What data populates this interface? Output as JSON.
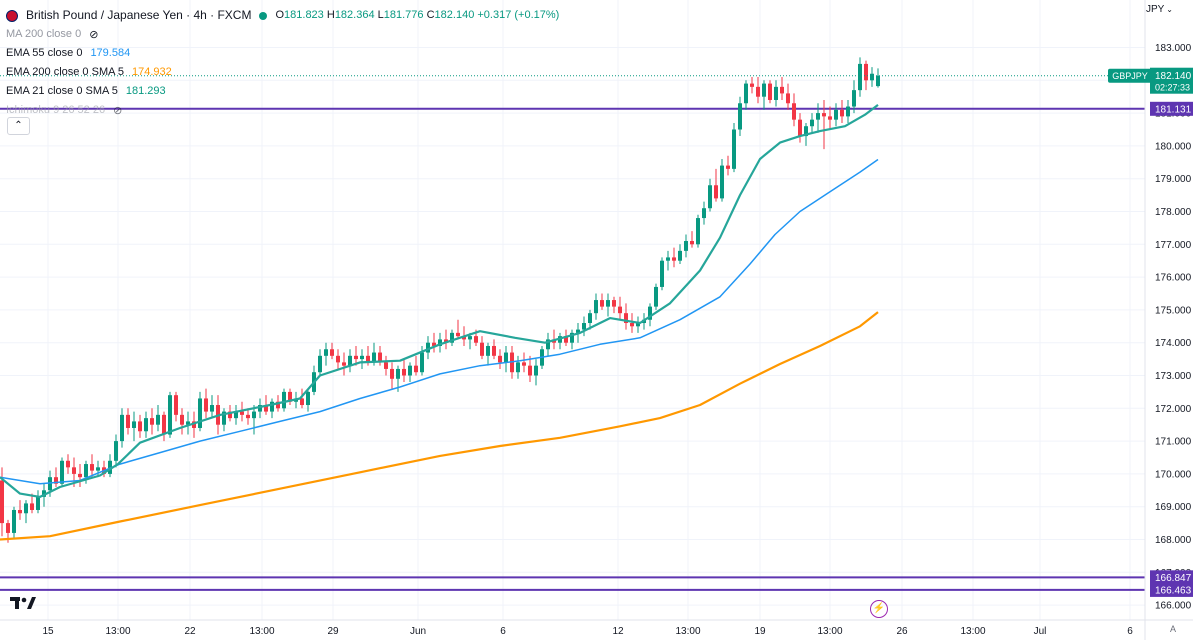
{
  "header": {
    "symbol_title": "British Pound / Japanese Yen · 4h · FXCM",
    "open_label": "O",
    "open": "181.823",
    "high_label": "H",
    "high": "182.364",
    "low_label": "L",
    "low": "181.776",
    "close_label": "C",
    "close": "182.140",
    "change": "+0.317 (+0.17%)"
  },
  "indicators": [
    {
      "name": "MA 200 close 0",
      "value": "",
      "color": "#9598a1"
    },
    {
      "name": "EMA 55 close 0",
      "value": "179.584",
      "color": "#2196f3"
    },
    {
      "name": "EMA 200 close 0 SMA 5",
      "value": "174.932",
      "color": "#ff9800"
    },
    {
      "name": "EMA 21 close 0 SMA 5",
      "value": "181.293",
      "color": "#26a69a"
    },
    {
      "name": "Ichimoku 9 26 52 26",
      "value": "",
      "color": "#9598a1"
    }
  ],
  "currency": "JPY",
  "colors": {
    "up": "#089981",
    "down": "#f23645",
    "ema21": "#26a69a",
    "ema55": "#2196f3",
    "ema200": "#ff9800",
    "hline": "#5e35b1",
    "price_tag": "#089981"
  },
  "chart_data": {
    "type": "candlestick",
    "title": "British Pound / Japanese Yen · 4h · FXCM",
    "xlabel": "",
    "ylabel": "",
    "ylim": [
      166.0,
      183.4
    ],
    "y_ticks": [
      "166.000",
      "167.000",
      "168.000",
      "169.000",
      "170.000",
      "171.000",
      "172.000",
      "173.000",
      "174.000",
      "175.000",
      "176.000",
      "177.000",
      "178.000",
      "179.000",
      "180.000",
      "181.000",
      "182.000",
      "183.000"
    ],
    "x_tick_labels": [
      "15",
      "13:00",
      "22",
      "13:00",
      "29",
      "Jun",
      "6",
      "12",
      "13:00",
      "19",
      "13:00",
      "26",
      "13:00",
      "Jul",
      "6"
    ],
    "last_price": "182.140",
    "countdown": "02:27:33",
    "symbol_tag": "GBPJPY",
    "horizontal_levels": [
      "181.131",
      "166.847",
      "166.463"
    ],
    "ema21": [
      [
        0,
        169.9
      ],
      [
        20,
        169.4
      ],
      [
        40,
        169.3
      ],
      [
        60,
        169.6
      ],
      [
        100,
        169.95
      ],
      [
        118,
        170.3
      ],
      [
        140,
        170.95
      ],
      [
        180,
        171.4
      ],
      [
        220,
        171.8
      ],
      [
        270,
        172.1
      ],
      [
        300,
        172.3
      ],
      [
        320,
        173.0
      ],
      [
        360,
        173.4
      ],
      [
        400,
        173.45
      ],
      [
        440,
        173.95
      ],
      [
        480,
        174.35
      ],
      [
        515,
        174.15
      ],
      [
        545,
        174.0
      ],
      [
        580,
        174.3
      ],
      [
        610,
        174.75
      ],
      [
        640,
        174.6
      ],
      [
        670,
        175.2
      ],
      [
        700,
        176.2
      ],
      [
        720,
        177.2
      ],
      [
        740,
        178.5
      ],
      [
        760,
        179.6
      ],
      [
        780,
        180.1
      ],
      [
        800,
        180.3
      ],
      [
        820,
        180.45
      ],
      [
        845,
        180.6
      ],
      [
        865,
        180.95
      ],
      [
        878,
        181.25
      ]
    ],
    "ema55": [
      [
        0,
        169.9
      ],
      [
        40,
        169.7
      ],
      [
        80,
        169.8
      ],
      [
        120,
        170.3
      ],
      [
        160,
        170.65
      ],
      [
        200,
        171.0
      ],
      [
        240,
        171.3
      ],
      [
        280,
        171.6
      ],
      [
        320,
        171.9
      ],
      [
        360,
        172.3
      ],
      [
        400,
        172.65
      ],
      [
        440,
        173.05
      ],
      [
        480,
        173.3
      ],
      [
        520,
        173.45
      ],
      [
        560,
        173.65
      ],
      [
        600,
        173.95
      ],
      [
        640,
        174.15
      ],
      [
        680,
        174.7
      ],
      [
        720,
        175.4
      ],
      [
        750,
        176.4
      ],
      [
        775,
        177.3
      ],
      [
        800,
        178.0
      ],
      [
        830,
        178.6
      ],
      [
        860,
        179.2
      ],
      [
        878,
        179.584
      ]
    ],
    "ema200": [
      [
        0,
        168.0
      ],
      [
        50,
        168.1
      ],
      [
        120,
        168.55
      ],
      [
        200,
        169.05
      ],
      [
        280,
        169.55
      ],
      [
        360,
        170.05
      ],
      [
        440,
        170.55
      ],
      [
        500,
        170.85
      ],
      [
        560,
        171.1
      ],
      [
        620,
        171.45
      ],
      [
        660,
        171.7
      ],
      [
        700,
        172.1
      ],
      [
        740,
        172.75
      ],
      [
        780,
        173.35
      ],
      [
        820,
        173.9
      ],
      [
        860,
        174.5
      ],
      [
        878,
        174.932
      ]
    ],
    "candles": [
      [
        2,
        169.8,
        170.2,
        168.1,
        168.5
      ],
      [
        8,
        168.5,
        168.6,
        167.9,
        168.2
      ],
      [
        14,
        168.2,
        169.0,
        168.0,
        168.9
      ],
      [
        20,
        168.9,
        169.2,
        168.6,
        168.8
      ],
      [
        26,
        168.8,
        169.2,
        168.5,
        169.1
      ],
      [
        32,
        169.1,
        169.4,
        168.8,
        168.9
      ],
      [
        38,
        168.9,
        169.5,
        168.8,
        169.3
      ],
      [
        44,
        169.3,
        169.7,
        169.0,
        169.5
      ],
      [
        50,
        169.5,
        170.1,
        169.3,
        169.9
      ],
      [
        56,
        169.9,
        170.2,
        169.6,
        169.7
      ],
      [
        62,
        169.7,
        170.5,
        169.6,
        170.4
      ],
      [
        68,
        170.4,
        170.6,
        170.0,
        170.2
      ],
      [
        74,
        170.2,
        170.5,
        169.6,
        170.0
      ],
      [
        80,
        170.0,
        170.3,
        169.6,
        169.9
      ],
      [
        86,
        169.9,
        170.4,
        169.7,
        170.3
      ],
      [
        92,
        170.3,
        170.6,
        169.9,
        170.1
      ],
      [
        98,
        170.1,
        170.4,
        169.9,
        170.2
      ],
      [
        104,
        170.2,
        170.4,
        169.9,
        170.0
      ],
      [
        110,
        170.0,
        170.6,
        169.9,
        170.4
      ],
      [
        116,
        170.4,
        171.2,
        170.2,
        171.0
      ],
      [
        122,
        171.0,
        172.0,
        170.8,
        171.8
      ],
      [
        128,
        171.8,
        172.0,
        171.2,
        171.4
      ],
      [
        134,
        171.4,
        171.9,
        171.0,
        171.6
      ],
      [
        140,
        171.6,
        171.8,
        171.1,
        171.3
      ],
      [
        146,
        171.3,
        171.9,
        171.1,
        171.7
      ],
      [
        152,
        171.7,
        172.0,
        171.2,
        171.5
      ],
      [
        158,
        171.5,
        172.1,
        171.3,
        171.8
      ],
      [
        164,
        171.8,
        171.9,
        171.0,
        171.2
      ],
      [
        170,
        171.2,
        172.5,
        171.1,
        172.4
      ],
      [
        176,
        172.4,
        172.5,
        171.6,
        171.8
      ],
      [
        182,
        171.8,
        172.0,
        171.2,
        171.5
      ],
      [
        188,
        171.5,
        171.9,
        171.2,
        171.6
      ],
      [
        194,
        171.6,
        171.9,
        171.1,
        171.4
      ],
      [
        200,
        171.4,
        172.5,
        171.3,
        172.3
      ],
      [
        206,
        172.3,
        172.6,
        171.7,
        171.9
      ],
      [
        212,
        171.9,
        172.4,
        171.7,
        172.1
      ],
      [
        218,
        172.1,
        172.4,
        171.2,
        171.5
      ],
      [
        224,
        171.5,
        172.0,
        171.3,
        171.9
      ],
      [
        230,
        171.9,
        172.1,
        171.6,
        171.7
      ],
      [
        236,
        171.7,
        172.1,
        171.5,
        171.9
      ],
      [
        242,
        171.9,
        172.2,
        171.6,
        171.8
      ],
      [
        248,
        171.8,
        172.0,
        171.5,
        171.7
      ],
      [
        254,
        171.7,
        172.1,
        171.2,
        171.9
      ],
      [
        260,
        171.9,
        172.3,
        171.7,
        172.1
      ],
      [
        266,
        172.1,
        172.4,
        171.8,
        171.9
      ],
      [
        272,
        171.9,
        172.3,
        171.7,
        172.2
      ],
      [
        278,
        172.2,
        172.4,
        171.9,
        172.0
      ],
      [
        284,
        172.0,
        172.6,
        171.9,
        172.5
      ],
      [
        290,
        172.5,
        172.6,
        172.1,
        172.2
      ],
      [
        296,
        172.2,
        172.5,
        172.0,
        172.3
      ],
      [
        302,
        172.3,
        172.6,
        172.0,
        172.1
      ],
      [
        308,
        172.1,
        172.6,
        171.9,
        172.5
      ],
      [
        314,
        172.5,
        173.3,
        172.4,
        173.1
      ],
      [
        320,
        173.1,
        173.8,
        173.0,
        173.6
      ],
      [
        326,
        173.6,
        174.0,
        173.3,
        173.8
      ],
      [
        332,
        173.8,
        174.0,
        173.5,
        173.6
      ],
      [
        338,
        173.6,
        173.8,
        173.2,
        173.4
      ],
      [
        344,
        173.4,
        173.7,
        173.0,
        173.3
      ],
      [
        350,
        173.3,
        173.8,
        173.1,
        173.6
      ],
      [
        356,
        173.6,
        173.9,
        173.3,
        173.5
      ],
      [
        362,
        173.5,
        173.8,
        173.2,
        173.6
      ],
      [
        368,
        173.6,
        173.9,
        173.3,
        173.4
      ],
      [
        374,
        173.4,
        174.0,
        173.3,
        173.7
      ],
      [
        380,
        173.7,
        173.9,
        173.3,
        173.4
      ],
      [
        386,
        173.4,
        173.6,
        173.0,
        173.2
      ],
      [
        392,
        173.2,
        173.4,
        172.6,
        172.9
      ],
      [
        398,
        172.9,
        173.3,
        172.5,
        173.2
      ],
      [
        404,
        173.2,
        173.5,
        172.8,
        173.0
      ],
      [
        410,
        173.0,
        173.4,
        172.8,
        173.3
      ],
      [
        416,
        173.3,
        173.6,
        173.0,
        173.1
      ],
      [
        422,
        173.1,
        173.9,
        173.0,
        173.7
      ],
      [
        428,
        173.7,
        174.2,
        173.5,
        174.0
      ],
      [
        434,
        174.0,
        174.3,
        173.7,
        173.9
      ],
      [
        440,
        173.9,
        174.3,
        173.7,
        174.1
      ],
      [
        446,
        174.1,
        174.4,
        173.8,
        174.0
      ],
      [
        452,
        174.0,
        174.4,
        173.9,
        174.3
      ],
      [
        458,
        174.3,
        174.7,
        174.1,
        174.2
      ],
      [
        464,
        174.2,
        174.5,
        173.9,
        174.1
      ],
      [
        470,
        174.1,
        174.3,
        173.8,
        174.2
      ],
      [
        476,
        174.2,
        174.4,
        173.9,
        174.0
      ],
      [
        482,
        174.0,
        174.2,
        173.5,
        173.6
      ],
      [
        488,
        173.6,
        174.0,
        173.3,
        173.9
      ],
      [
        494,
        173.9,
        174.1,
        173.5,
        173.6
      ],
      [
        500,
        173.6,
        173.8,
        173.2,
        173.4
      ],
      [
        506,
        173.4,
        173.9,
        173.1,
        173.7
      ],
      [
        512,
        173.7,
        173.9,
        172.9,
        173.1
      ],
      [
        518,
        173.1,
        173.6,
        172.9,
        173.4
      ],
      [
        524,
        173.4,
        173.7,
        173.1,
        173.3
      ],
      [
        530,
        173.3,
        173.6,
        172.8,
        173.0
      ],
      [
        536,
        173.0,
        173.5,
        172.7,
        173.3
      ],
      [
        542,
        173.3,
        173.9,
        173.2,
        173.8
      ],
      [
        548,
        173.8,
        174.3,
        173.6,
        174.1
      ],
      [
        554,
        174.1,
        174.4,
        173.8,
        174.0
      ],
      [
        560,
        174.0,
        174.3,
        173.8,
        174.2
      ],
      [
        566,
        174.2,
        174.4,
        173.9,
        174.0
      ],
      [
        572,
        174.0,
        174.4,
        173.8,
        174.3
      ],
      [
        578,
        174.3,
        174.6,
        174.0,
        174.4
      ],
      [
        584,
        174.4,
        174.8,
        174.2,
        174.6
      ],
      [
        590,
        174.6,
        175.0,
        174.4,
        174.9
      ],
      [
        596,
        174.9,
        175.5,
        174.7,
        175.3
      ],
      [
        602,
        175.3,
        175.5,
        175.0,
        175.1
      ],
      [
        608,
        175.1,
        175.5,
        174.8,
        175.3
      ],
      [
        614,
        175.3,
        175.4,
        174.9,
        175.1
      ],
      [
        620,
        175.1,
        175.4,
        174.7,
        174.9
      ],
      [
        626,
        174.9,
        175.2,
        174.4,
        174.6
      ],
      [
        632,
        174.6,
        174.9,
        174.3,
        174.5
      ],
      [
        638,
        174.5,
        174.8,
        174.3,
        174.6
      ],
      [
        644,
        174.6,
        174.9,
        174.4,
        174.7
      ],
      [
        650,
        174.7,
        175.2,
        174.5,
        175.1
      ],
      [
        656,
        175.1,
        175.8,
        175.0,
        175.7
      ],
      [
        662,
        175.7,
        176.6,
        175.6,
        176.5
      ],
      [
        668,
        176.5,
        176.8,
        176.2,
        176.6
      ],
      [
        674,
        176.6,
        176.9,
        176.3,
        176.5
      ],
      [
        680,
        176.5,
        177.0,
        176.4,
        176.8
      ],
      [
        686,
        176.8,
        177.3,
        176.6,
        177.1
      ],
      [
        692,
        177.1,
        177.4,
        176.9,
        177.0
      ],
      [
        698,
        177.0,
        177.9,
        176.9,
        177.8
      ],
      [
        704,
        177.8,
        178.3,
        177.6,
        178.1
      ],
      [
        710,
        178.1,
        179.0,
        178.0,
        178.8
      ],
      [
        716,
        178.8,
        179.3,
        178.3,
        178.4
      ],
      [
        722,
        178.4,
        179.6,
        178.3,
        179.4
      ],
      [
        728,
        179.4,
        179.7,
        179.1,
        179.3
      ],
      [
        734,
        179.3,
        180.7,
        179.2,
        180.5
      ],
      [
        740,
        180.5,
        181.5,
        180.3,
        181.3
      ],
      [
        746,
        181.3,
        182.0,
        181.1,
        181.9
      ],
      [
        752,
        181.9,
        182.1,
        181.6,
        181.8
      ],
      [
        758,
        181.8,
        182.1,
        181.3,
        181.5
      ],
      [
        764,
        181.5,
        182.0,
        181.1,
        181.9
      ],
      [
        770,
        181.9,
        182.0,
        181.3,
        181.4
      ],
      [
        776,
        181.4,
        182.0,
        181.2,
        181.8
      ],
      [
        782,
        181.8,
        182.1,
        181.4,
        181.6
      ],
      [
        788,
        181.6,
        181.9,
        181.1,
        181.3
      ],
      [
        794,
        181.3,
        181.6,
        180.6,
        180.8
      ],
      [
        800,
        180.8,
        181.0,
        180.1,
        180.3
      ],
      [
        806,
        180.3,
        180.7,
        180.0,
        180.6
      ],
      [
        812,
        180.6,
        181.0,
        180.4,
        180.8
      ],
      [
        818,
        180.8,
        181.3,
        180.4,
        181.0
      ],
      [
        824,
        181.0,
        181.4,
        179.9,
        180.9
      ],
      [
        830,
        180.9,
        181.2,
        180.5,
        180.8
      ],
      [
        836,
        180.8,
        181.3,
        180.6,
        181.1
      ],
      [
        842,
        181.1,
        181.4,
        180.7,
        180.9
      ],
      [
        848,
        180.9,
        181.4,
        180.7,
        181.2
      ],
      [
        854,
        181.2,
        182.0,
        181.0,
        181.7
      ],
      [
        860,
        181.7,
        182.7,
        181.5,
        182.5
      ],
      [
        866,
        182.5,
        182.6,
        181.7,
        182.0
      ],
      [
        872,
        182.0,
        182.4,
        181.8,
        182.2
      ],
      [
        878,
        181.823,
        182.364,
        181.776,
        182.14
      ]
    ]
  }
}
